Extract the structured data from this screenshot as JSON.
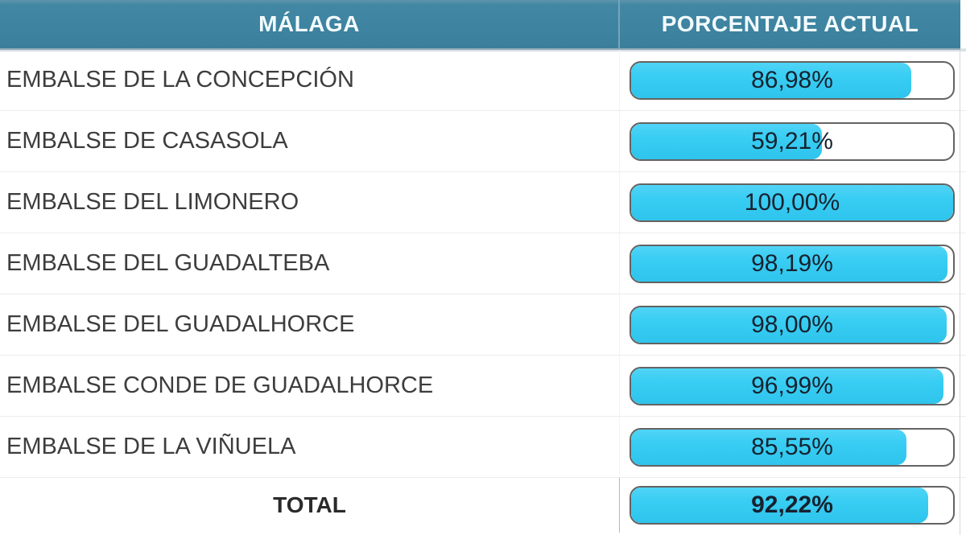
{
  "table": {
    "header": {
      "left": "MÁLAGA",
      "right": "PORCENTAJE ACTUAL"
    },
    "rows": [
      {
        "label": "EMBALSE DE LA CONCEPCIÓN",
        "value": "86,98%",
        "pct": 86.98
      },
      {
        "label": "EMBALSE DE CASASOLA",
        "value": "59,21%",
        "pct": 59.21
      },
      {
        "label": "EMBALSE DEL LIMONERO",
        "value": "100,00%",
        "pct": 100.0
      },
      {
        "label": "EMBALSE DEL GUADALTEBA",
        "value": "98,19%",
        "pct": 98.19
      },
      {
        "label": "EMBALSE DEL GUADALHORCE",
        "value": "98,00%",
        "pct": 98.0
      },
      {
        "label": "EMBALSE CONDE DE GUADALHORCE",
        "value": "96,99%",
        "pct": 96.99
      },
      {
        "label": "EMBALSE DE LA VIÑUELA",
        "value": "85,55%",
        "pct": 85.55
      }
    ],
    "total": {
      "label": "TOTAL",
      "value": "92,22%",
      "pct": 92.22
    }
  },
  "colors": {
    "header_bg": "#3e84a1",
    "header_text": "#f2fafd",
    "bar_fill": "#38cdf3",
    "bar_border": "#636363",
    "value_text": "#16222f",
    "label_text": "#3d3d3d",
    "row_divider": "#ececec"
  },
  "chart_data": {
    "type": "bar",
    "title": "MÁLAGA — PORCENTAJE ACTUAL",
    "categories": [
      "EMBALSE DE LA CONCEPCIÓN",
      "EMBALSE DE CASASOLA",
      "EMBALSE DEL LIMONERO",
      "EMBALSE DEL GUADALTEBA",
      "EMBALSE DEL GUADALHORCE",
      "EMBALSE CONDE DE GUADALHORCE",
      "EMBALSE DE LA VIÑUELA",
      "TOTAL"
    ],
    "values": [
      86.98,
      59.21,
      100.0,
      98.19,
      98.0,
      96.99,
      85.55,
      92.22
    ],
    "value_labels": [
      "86,98%",
      "59,21%",
      "100,00%",
      "98,19%",
      "98,00%",
      "96,99%",
      "85,55%",
      "92,22%"
    ],
    "xlabel": "",
    "ylabel": "Porcentaje actual (%)",
    "xlim": [
      0,
      100
    ],
    "orientation": "horizontal",
    "grid": false,
    "legend": false
  }
}
